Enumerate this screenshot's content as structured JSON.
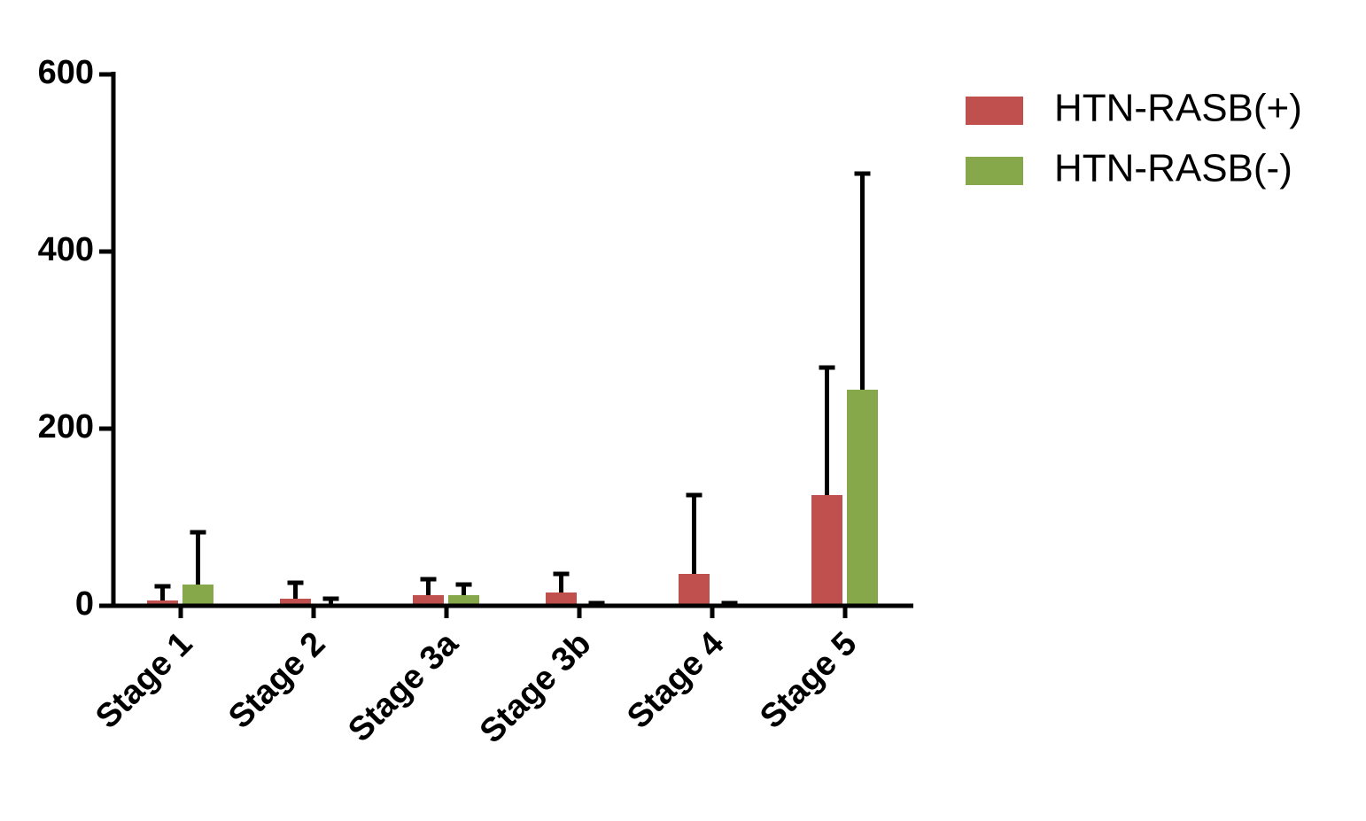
{
  "chart_data": {
    "type": "bar",
    "categories": [
      "Stage 1",
      "Stage 2",
      "Stage 3a",
      "Stage 3b",
      "Stage 4",
      "Stage 5"
    ],
    "series": [
      {
        "name": "HTN-RASB(+)",
        "color": "#c0504d",
        "values": [
          6,
          8,
          12,
          15,
          36,
          125
        ],
        "errors": [
          16,
          18,
          18,
          21,
          89,
          144
        ]
      },
      {
        "name": "HTN-RASB(-)",
        "color": "#86a84a",
        "values": [
          24,
          2,
          12,
          1,
          1,
          244
        ],
        "errors": [
          59,
          6,
          12,
          2,
          2,
          244
        ]
      }
    ],
    "ylim": [
      0,
      600
    ],
    "yticks": [
      0,
      200,
      400,
      600
    ],
    "grid": false,
    "legend": "right"
  }
}
